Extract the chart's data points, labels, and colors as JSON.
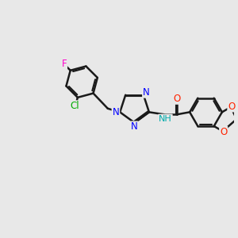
{
  "bg_color": "#e8e8e8",
  "bond_color": "#1a1a1a",
  "bond_width": 1.8,
  "atom_colors": {
    "N": "#0000ff",
    "O": "#ff2200",
    "F": "#ff00cc",
    "Cl": "#00aa00",
    "NH": "#00aaaa"
  },
  "font_size": 8.5,
  "fig_width": 3.0,
  "fig_height": 3.0,
  "dpi": 100
}
